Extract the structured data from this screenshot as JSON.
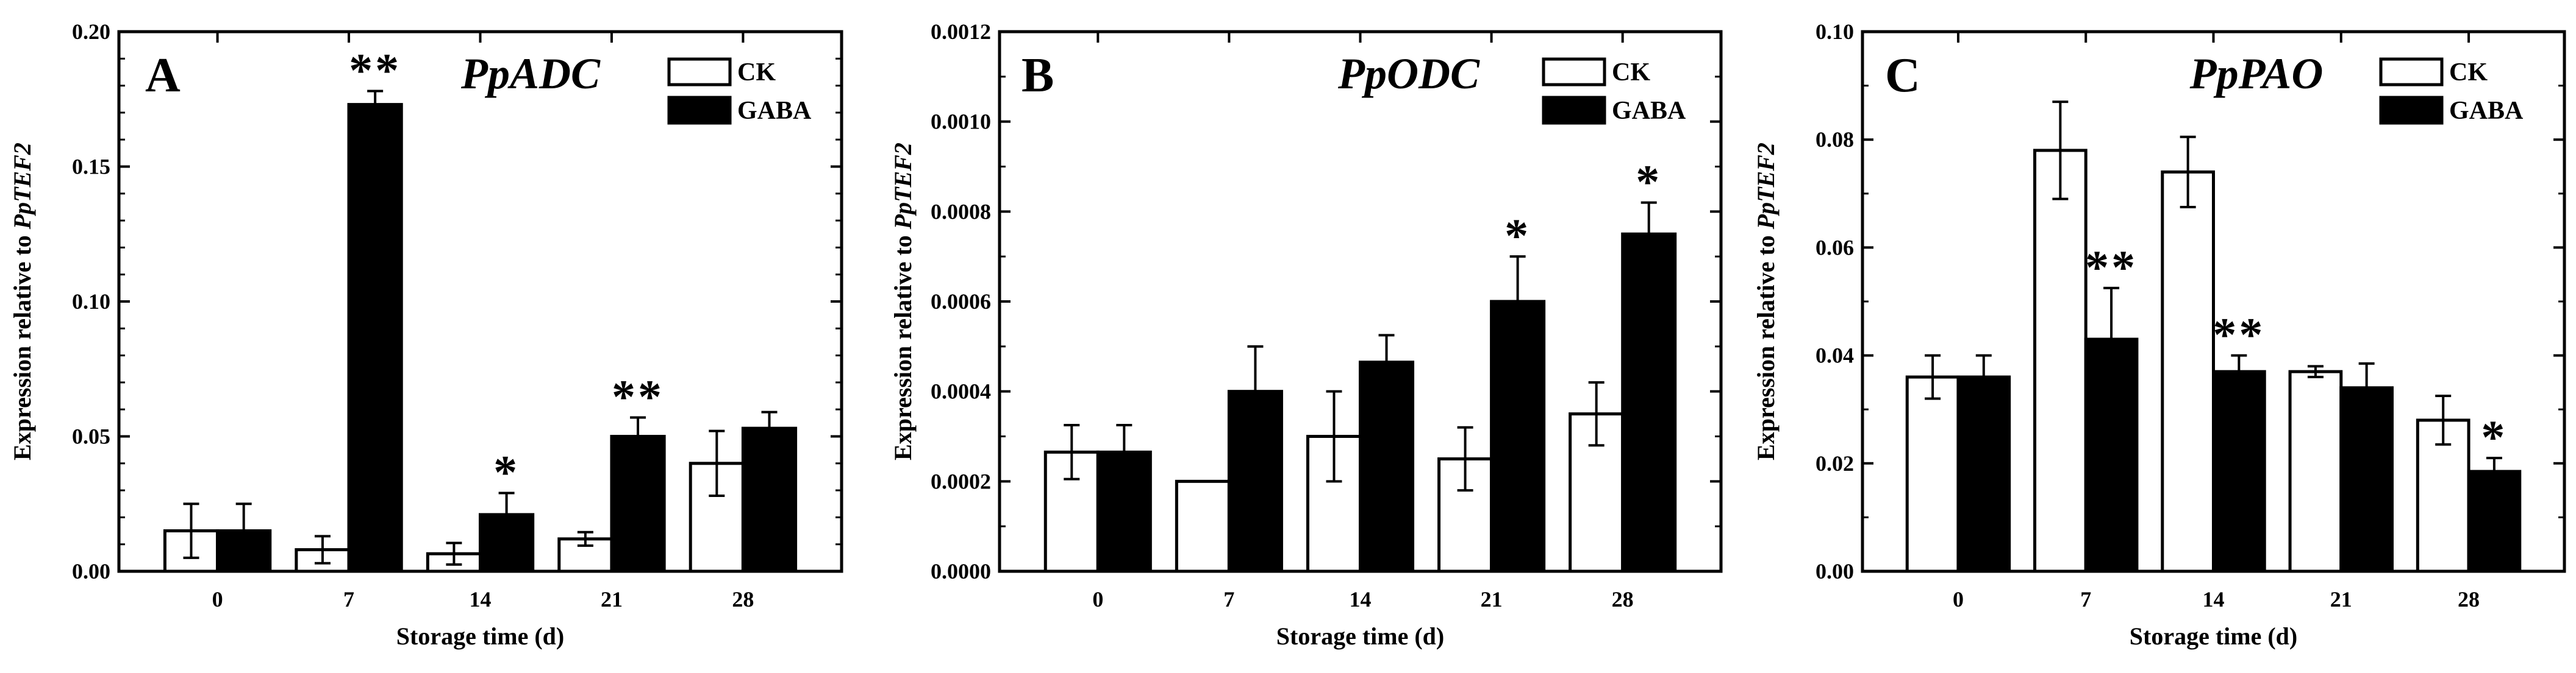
{
  "chart_data": [
    {
      "type": "bar",
      "panel_letter": "A",
      "title": "PpADC",
      "xlabel": "Storage time (d)",
      "ylabel_prefix": "Expression relative to ",
      "ylabel_gene": "PpTEF2",
      "categories": [
        "0",
        "7",
        "14",
        "21",
        "28"
      ],
      "ylim": [
        0,
        0.2
      ],
      "yticks": [
        "0.00",
        "0.05",
        "0.10",
        "0.15",
        "0.20"
      ],
      "legend": [
        "CK",
        "GABA"
      ],
      "series": [
        {
          "name": "CK",
          "values": [
            0.015,
            0.008,
            0.0065,
            0.012,
            0.04
          ],
          "errors": [
            0.01,
            0.005,
            0.004,
            0.0025,
            0.012
          ]
        },
        {
          "name": "GABA",
          "values": [
            0.015,
            0.173,
            0.021,
            0.05,
            0.053
          ],
          "errors": [
            0.01,
            0.005,
            0.008,
            0.007,
            0.006
          ]
        }
      ],
      "annotations": [
        "",
        "**",
        "*",
        "**",
        ""
      ]
    },
    {
      "type": "bar",
      "panel_letter": "B",
      "title": "PpODC",
      "xlabel": "Storage time (d)",
      "ylabel_prefix": "Expression relative to ",
      "ylabel_gene": "PpTEF2",
      "categories": [
        "0",
        "7",
        "14",
        "21",
        "28"
      ],
      "ylim": [
        0,
        0.0012
      ],
      "yticks": [
        "0.0000",
        "0.0002",
        "0.0004",
        "0.0006",
        "0.0008",
        "0.0010",
        "0.0012"
      ],
      "legend": [
        "CK",
        "GABA"
      ],
      "series": [
        {
          "name": "CK",
          "values": [
            0.000265,
            0.0002,
            0.0003,
            0.00025,
            0.00035
          ],
          "errors": [
            6e-05,
            0,
            0.0001,
            7e-05,
            7e-05
          ]
        },
        {
          "name": "GABA",
          "values": [
            0.000265,
            0.0004,
            0.000465,
            0.0006,
            0.00075
          ],
          "errors": [
            6e-05,
            0.0001,
            6e-05,
            0.0001,
            7e-05
          ]
        }
      ],
      "annotations": [
        "",
        "",
        "",
        "*",
        "*"
      ]
    },
    {
      "type": "bar",
      "panel_letter": "C",
      "title": "PpPAO",
      "xlabel": "Storage time (d)",
      "ylabel_prefix": "Expression relative to ",
      "ylabel_gene": "PpTEF2",
      "categories": [
        "0",
        "7",
        "14",
        "21",
        "28"
      ],
      "ylim": [
        0,
        0.1
      ],
      "yticks": [
        "0.00",
        "0.02",
        "0.04",
        "0.06",
        "0.08",
        "0.10"
      ],
      "legend": [
        "CK",
        "GABA"
      ],
      "series": [
        {
          "name": "CK",
          "values": [
            0.036,
            0.078,
            0.074,
            0.037,
            0.028
          ],
          "errors": [
            0.004,
            0.009,
            0.0065,
            0.001,
            0.0045
          ]
        },
        {
          "name": "GABA",
          "values": [
            0.036,
            0.043,
            0.037,
            0.034,
            0.0185
          ],
          "errors": [
            0.004,
            0.0095,
            0.003,
            0.0045,
            0.0025
          ]
        }
      ],
      "annotations": [
        "",
        "**",
        "**",
        "",
        "*"
      ]
    }
  ]
}
